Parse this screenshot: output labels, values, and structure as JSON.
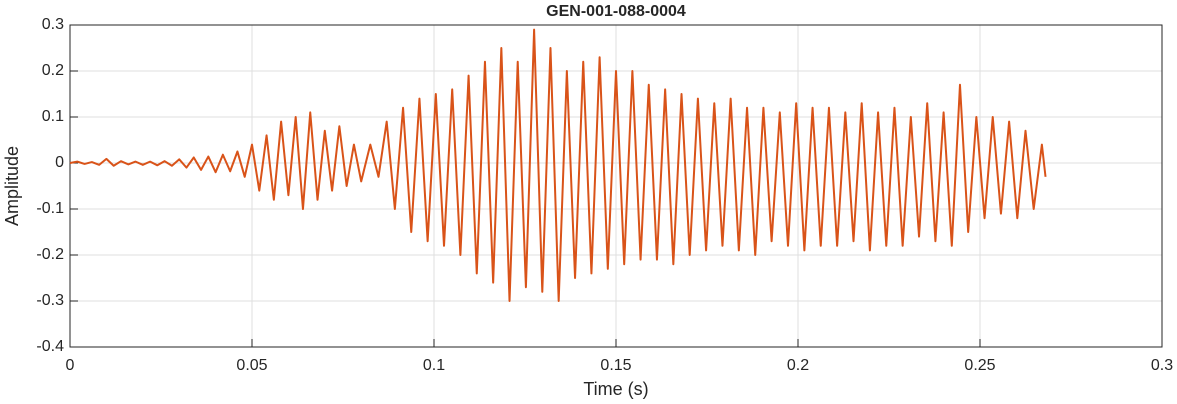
{
  "chart_data": {
    "type": "line",
    "title": "GEN-001-088-0004",
    "xlabel": "Time (s)",
    "ylabel": "Amplitude",
    "color": "#d95319",
    "grid": true,
    "xlim": [
      0,
      0.3
    ],
    "ylim": [
      -0.4,
      0.3
    ],
    "xticks": [
      0,
      0.05,
      0.1,
      0.15,
      0.2,
      0.25,
      0.3
    ],
    "yticks": [
      -0.4,
      -0.3,
      -0.2,
      -0.1,
      0,
      0.1,
      0.2,
      0.3
    ],
    "x": [
      0,
      0.002,
      0.004,
      0.006,
      0.008,
      0.01,
      0.012,
      0.014,
      0.016,
      0.018,
      0.02,
      0.022,
      0.024,
      0.026,
      0.028,
      0.03,
      0.032,
      0.034,
      0.036,
      0.038,
      0.04,
      0.042,
      0.044,
      0.046,
      0.048,
      0.05,
      0.052,
      0.054,
      0.056,
      0.058,
      0.06,
      0.062,
      0.064,
      0.066,
      0.068,
      0.07,
      0.072,
      0.074,
      0.076,
      0.078,
      0.08,
      0.0825,
      0.08475,
      0.087,
      0.08925,
      0.0915,
      0.09375,
      0.096,
      0.09825,
      0.1005,
      0.10275,
      0.105,
      0.10725,
      0.1095,
      0.11175,
      0.114,
      0.11625,
      0.1185,
      0.12075,
      0.123,
      0.12525,
      0.1275,
      0.12975,
      0.132,
      0.13425,
      0.1365,
      0.13875,
      0.141,
      0.14325,
      0.1455,
      0.14775,
      0.15,
      0.15225,
      0.1545,
      0.15675,
      0.159,
      0.16125,
      0.1635,
      0.16575,
      0.168,
      0.17025,
      0.1725,
      0.17475,
      0.177,
      0.17925,
      0.1815,
      0.18375,
      0.186,
      0.18825,
      0.1905,
      0.19275,
      0.195,
      0.19725,
      0.1995,
      0.20175,
      0.204,
      0.20625,
      0.2085,
      0.21075,
      0.213,
      0.21525,
      0.2175,
      0.21975,
      0.222,
      0.22425,
      0.2265,
      0.22875,
      0.231,
      0.23325,
      0.2355,
      0.23775,
      0.24,
      0.24225,
      0.2445,
      0.24675,
      0.249,
      0.25125,
      0.2535,
      0.25575,
      0.258,
      0.26025,
      0.2625,
      0.26475,
      0.267,
      0.268
    ],
    "values": [
      0,
      0.003,
      -0.002,
      0.002,
      -0.004,
      0.009,
      -0.006,
      0.004,
      -0.003,
      0.003,
      -0.004,
      0.003,
      -0.005,
      0.004,
      -0.006,
      0.008,
      -0.01,
      0.012,
      -0.015,
      0.014,
      -0.02,
      0.018,
      -0.018,
      0.025,
      -0.03,
      0.04,
      -0.06,
      0.06,
      -0.08,
      0.09,
      -0.07,
      0.1,
      -0.1,
      0.11,
      -0.08,
      0.07,
      -0.06,
      0.08,
      -0.05,
      0.04,
      -0.04,
      0.04,
      -0.03,
      0.09,
      -0.1,
      0.12,
      -0.15,
      0.14,
      -0.17,
      0.15,
      -0.18,
      0.16,
      -0.2,
      0.19,
      -0.24,
      0.22,
      -0.26,
      0.25,
      -0.3,
      0.22,
      -0.27,
      0.29,
      -0.28,
      0.25,
      -0.3,
      0.2,
      -0.25,
      0.22,
      -0.24,
      0.23,
      -0.23,
      0.2,
      -0.22,
      0.2,
      -0.21,
      0.17,
      -0.21,
      0.16,
      -0.22,
      0.15,
      -0.2,
      0.14,
      -0.19,
      0.13,
      -0.18,
      0.14,
      -0.19,
      0.12,
      -0.2,
      0.12,
      -0.17,
      0.11,
      -0.18,
      0.13,
      -0.19,
      0.12,
      -0.18,
      0.12,
      -0.18,
      0.11,
      -0.17,
      0.13,
      -0.19,
      0.11,
      -0.18,
      0.12,
      -0.18,
      0.1,
      -0.16,
      0.13,
      -0.17,
      0.11,
      -0.18,
      0.17,
      -0.15,
      0.1,
      -0.12,
      0.1,
      -0.11,
      0.09,
      -0.12,
      0.07,
      -0.1,
      0.04,
      -0.03
    ]
  }
}
